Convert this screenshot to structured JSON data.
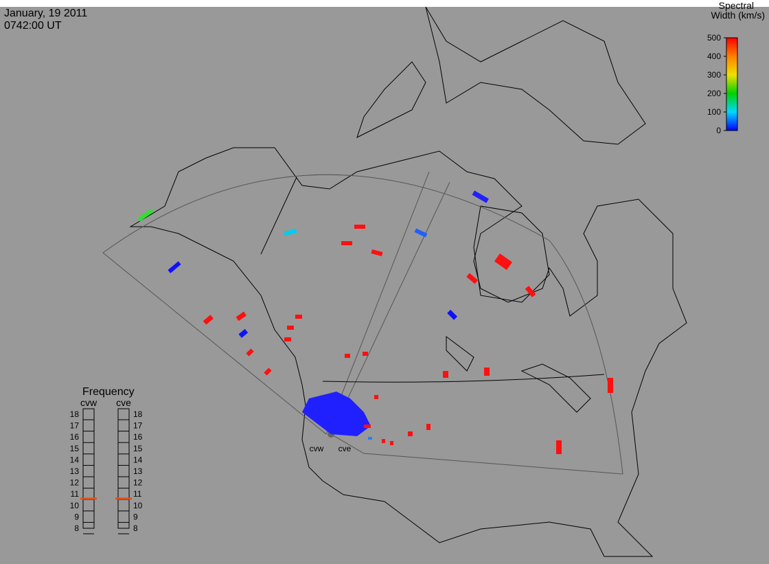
{
  "header": {
    "date": "January, 19 2011",
    "time": "0742:00 UT"
  },
  "colorbar": {
    "title": [
      "Spectral",
      "Width (km/s)"
    ],
    "lim": [
      0,
      500
    ],
    "ticks": [
      0,
      100,
      200,
      300,
      400,
      500
    ]
  },
  "frequency": {
    "title": "Frequency",
    "lim": [
      8,
      18
    ],
    "ticks": [
      8,
      9,
      10,
      11,
      12,
      13,
      14,
      15,
      16,
      17,
      18
    ],
    "radars": [
      {
        "name": "cvw",
        "value": 10.6
      },
      {
        "name": "cve",
        "value": 10.6
      }
    ],
    "color": "#e0501a"
  },
  "radar_labels": [
    "cvw",
    "cve"
  ]
}
